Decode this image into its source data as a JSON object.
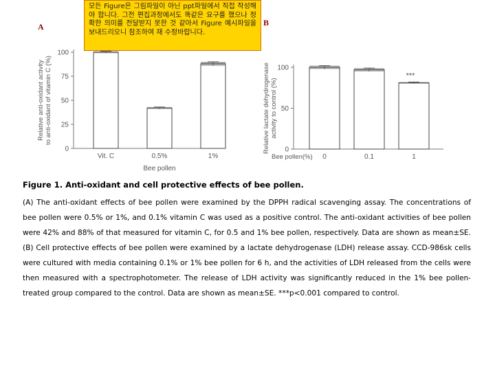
{
  "panel_a_label": "A",
  "panel_b_label": "B",
  "note": "모든 Figure은 그림파일이 아닌 ppt파일에서 직접 작성해야 합니다. 그전 편집과정에서도 똑같은 요구를 했으나 정확한 의미를 전달받지 못한 것 같아서 Figure 예시파일을 보내드리오니 참조하여 재 수정바랍니다.",
  "chart_data": [
    {
      "type": "bar",
      "categories": [
        "Vit. C",
        "0.5%",
        "1%"
      ],
      "values": [
        100,
        42,
        88
      ],
      "errors": [
        1,
        1,
        2
      ],
      "ylim": [
        0,
        100
      ],
      "yticks": [
        "0",
        "25",
        "50",
        "75",
        "100"
      ],
      "ylabel_line1": "Relative anti-oxidant activity",
      "ylabel_line2": "to anti-oxidant of vitamin C (%)",
      "xlabel": "Bee pollen",
      "bar_color": "#ffffff",
      "stroke_color": "#444444"
    },
    {
      "type": "bar",
      "categories": [
        "0",
        "0.1",
        "1"
      ],
      "values": [
        100,
        97,
        81
      ],
      "errors": [
        2,
        2,
        1
      ],
      "ylim": [
        0,
        100
      ],
      "yticks": [
        "0",
        "50",
        "100"
      ],
      "ylabel_line1": "Relative lactate dehydrogenase",
      "ylabel_line2": "activity to control (%)",
      "xaxis_prefix": "Bee pollen(%)",
      "annotation": "***",
      "bar_color": "#ffffff",
      "stroke_color": "#444444"
    }
  ],
  "caption": {
    "title": "Figure 1. Anti-oxidant and cell protective effects of bee pollen.",
    "body": "(A) The anti-oxidant effects of bee pollen were examined by the DPPH radical scavenging assay. The concentrations of bee pollen were 0.5% or 1%, and 0.1% vitamin C was used as a positive control. The anti-oxidant activities of bee pollen were 42% and 88% of that measured for vitamin C, for 0.5 and 1% bee pollen, respectively. Data are shown as mean±SE. (B) Cell protective effects of bee pollen were examined by a lactate dehydrogenase (LDH) release assay. CCD-986sk cells were cultured with media containing 0.1% or 1% bee pollen for 6 h, and the activities of LDH released from the cells were then measured with a spectrophotometer. The release of LDH activity was significantly reduced in the 1% bee pollen-treated group compared to the control. Data are shown as mean±SE. ***p<0.001 compared to control."
  }
}
